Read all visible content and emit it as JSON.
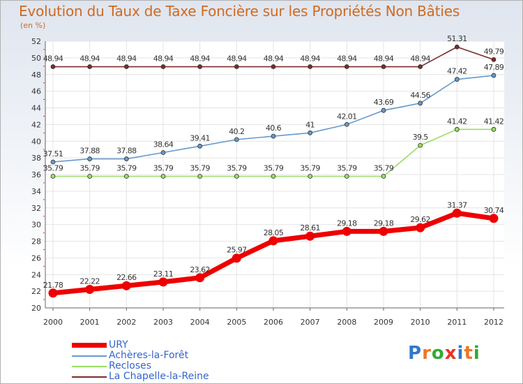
{
  "chart_data": {
    "type": "line",
    "title": "Evolution du Taux de Taxe Foncière sur les Propriétés Non Bâties",
    "subtitle": "(en %)",
    "x": [
      "2000",
      "2001",
      "2002",
      "2003",
      "2004",
      "2005",
      "2006",
      "2007",
      "2008",
      "2009",
      "2010",
      "2011",
      "2012"
    ],
    "ylim": [
      20,
      52
    ],
    "yticks": [
      20,
      22,
      24,
      26,
      28,
      30,
      32,
      34,
      36,
      38,
      40,
      42,
      44,
      46,
      48,
      50,
      52
    ],
    "grid": true,
    "legend_position": "bottom-left",
    "series": [
      {
        "name": "URY",
        "color": "#ee0000",
        "values": [
          21.78,
          22.22,
          22.66,
          23.11,
          23.62,
          25.97,
          28.05,
          28.61,
          29.18,
          29.18,
          29.62,
          31.37,
          30.74
        ],
        "labels": [
          "21.78",
          "22.22",
          "22.66",
          "23.11",
          "23.62",
          "25.97",
          "28.05",
          "28.61",
          "29.18",
          "29.18",
          "29.62",
          "31.37",
          "30.74"
        ]
      },
      {
        "name": "Achères-la-Forêt",
        "color": "#6699cc",
        "values": [
          37.51,
          37.88,
          37.88,
          38.64,
          39.41,
          40.2,
          40.6,
          41,
          42.01,
          43.69,
          44.56,
          47.42,
          47.89
        ],
        "labels": [
          "37.51",
          "37.88",
          "37.88",
          "38.64",
          "39.41",
          "40.2",
          "40.6",
          "41",
          "42.01",
          "43.69",
          "44.56",
          "47.42",
          "47.89"
        ]
      },
      {
        "name": "Recloses",
        "color": "#99dd66",
        "values": [
          35.79,
          35.79,
          35.79,
          35.79,
          35.79,
          35.79,
          35.79,
          35.79,
          35.79,
          35.79,
          39.5,
          41.42,
          41.42
        ],
        "labels": [
          "35.79",
          "35.79",
          "35.79",
          "35.79",
          "35.79",
          "35.79",
          "35.79",
          "35.79",
          "35.79",
          "35.79",
          "39.5",
          "41.42",
          "41.42"
        ]
      },
      {
        "name": "La Chapelle-la-Reine",
        "color": "#7a2b2b",
        "values": [
          48.94,
          48.94,
          48.94,
          48.94,
          48.94,
          48.94,
          48.94,
          48.94,
          48.94,
          48.94,
          48.94,
          51.31,
          49.79
        ],
        "labels": [
          "48.94",
          "48.94",
          "48.94",
          "48.94",
          "48.94",
          "48.94",
          "48.94",
          "48.94",
          "48.94",
          "48.94",
          "48.94",
          "51.31",
          "49.79"
        ]
      }
    ]
  },
  "logo": {
    "letters": [
      "P",
      "r",
      "o",
      "x",
      "i",
      "t",
      "i"
    ],
    "colors": [
      "#3377cc",
      "#ee7722",
      "#33aa33",
      "#ee3322",
      "#3377cc",
      "#ee7722",
      "#33aa33"
    ]
  }
}
